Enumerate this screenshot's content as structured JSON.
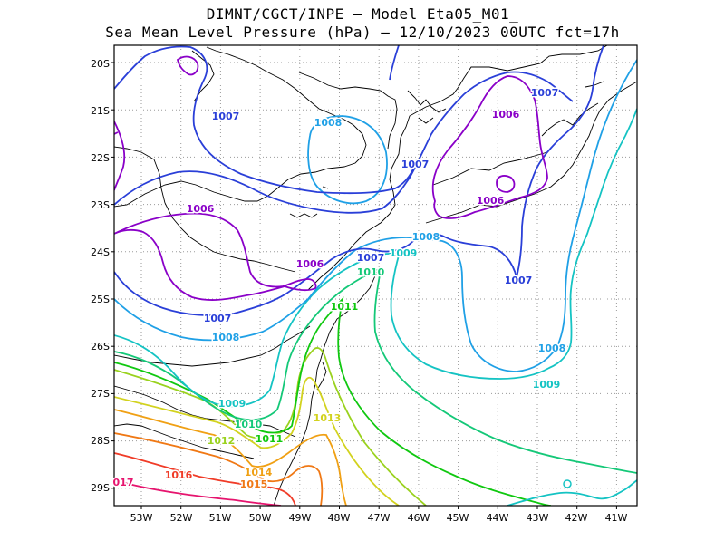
{
  "title": {
    "line1": "DIMNT/CGCT/INPE –  Model Eta05_M01_",
    "line2": "Sea Mean Level Pressure (hPa) – 12/10/2023 00UTC fct=17h"
  },
  "axes": {
    "lat_labels": [
      "20S",
      "21S",
      "22S",
      "23S",
      "24S",
      "25S",
      "26S",
      "27S",
      "28S",
      "29S"
    ],
    "lon_labels": [
      "53W",
      "52W",
      "51W",
      "50W",
      "49W",
      "48W",
      "47W",
      "46W",
      "45W",
      "44W",
      "43W",
      "42W",
      "41W"
    ]
  },
  "contour_labels": {
    "c1006a": "1006",
    "c1006b": "1006",
    "c1006c": "1006",
    "c1006d": "1006",
    "c1007a": "1007",
    "c1007b": "1007",
    "c1007c": "1007",
    "c1007d": "1007",
    "c1007e": "1007",
    "c1008a": "1008",
    "c1008b": "1008",
    "c1008c": "1008",
    "c1008d": "1008",
    "c1009a": "1009",
    "c1009b": "1009",
    "c1009c": "1009",
    "c1010a": "1010",
    "c1010b": "1010",
    "c1011a": "1011",
    "c1011b": "1011",
    "c1012": "1012",
    "c1013": "1013",
    "c1014": "1014",
    "c1015": "1015",
    "c1016": "1016",
    "c1017": "017"
  },
  "colors": {
    "c1006": "#8a00c8",
    "c1007": "#2a3fd8",
    "c1008": "#1fa0e6",
    "c1009": "#14c3c3",
    "c1010": "#14c878",
    "c1011": "#10c810",
    "c1012": "#9ad21e",
    "c1013": "#d2d21e",
    "c1014": "#f0a014",
    "c1015": "#f07814",
    "c1016": "#f03c28",
    "c1017": "#e6146e",
    "grid": "#9a9a9a",
    "coast": "#000000"
  }
}
